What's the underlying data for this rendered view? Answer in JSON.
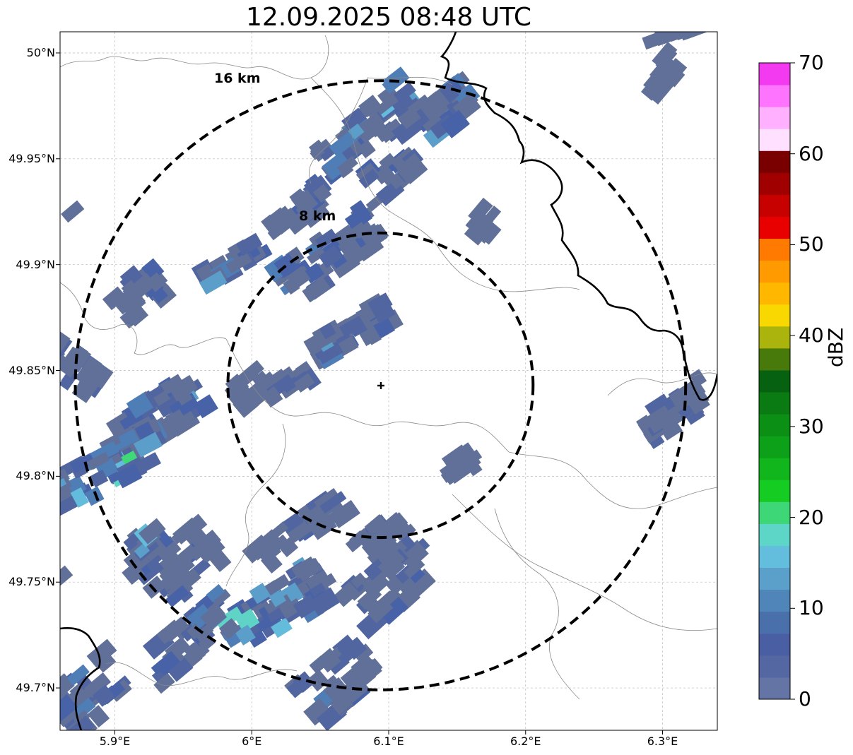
{
  "title": "12.09.2025 08:48 UTC",
  "map": {
    "lon_range": [
      5.86,
      6.34
    ],
    "lat_range": [
      49.68,
      50.01
    ],
    "center": {
      "lon": 6.094,
      "lat": 49.843
    },
    "x_ticks": [
      {
        "value": 5.9,
        "label": "5.9°E"
      },
      {
        "value": 6.0,
        "label": "6°E"
      },
      {
        "value": 6.1,
        "label": "6.1°E"
      },
      {
        "value": 6.2,
        "label": "6.2°E"
      },
      {
        "value": 6.3,
        "label": "6.3°E"
      }
    ],
    "y_ticks": [
      {
        "value": 50.0,
        "label": "50°N"
      },
      {
        "value": 49.95,
        "label": "49.95°N"
      },
      {
        "value": 49.9,
        "label": "49.9°N"
      },
      {
        "value": 49.85,
        "label": "49.85°N"
      },
      {
        "value": 49.8,
        "label": "49.8°N"
      },
      {
        "value": 49.75,
        "label": "49.75°N"
      },
      {
        "value": 49.7,
        "label": "49.7°N"
      }
    ],
    "rings": [
      {
        "radius_km": 8,
        "label": "8 km"
      },
      {
        "radius_km": 16,
        "label": "16 km"
      }
    ],
    "echo_colors": [
      "#607099",
      "#5166a0",
      "#4862a8",
      "#4f7db5",
      "#5b9ec9",
      "#63bcdb",
      "#5fd4c6",
      "#3fd977",
      "#14c825",
      "#10a81a"
    ]
  },
  "colorbar": {
    "label": "dBZ",
    "ticks": [
      "0",
      "10",
      "20",
      "30",
      "40",
      "50",
      "60",
      "70"
    ],
    "colors": [
      "#6475a5",
      "#5467a2",
      "#4a5fa3",
      "#4a70ac",
      "#4f85b8",
      "#5aa0ca",
      "#63bedd",
      "#5dd6c8",
      "#3ed777",
      "#15cc22",
      "#11b61c",
      "#0da11a",
      "#0c8f15",
      "#0a7b12",
      "#066210",
      "#477a0a",
      "#abb40d",
      "#f9d700",
      "#ffb700",
      "#ff9a00",
      "#ff7a00",
      "#e80000",
      "#c70000",
      "#a10000",
      "#7a0000",
      "#ffe1ff",
      "#ffb0ff",
      "#ff74ff",
      "#f33af0"
    ]
  }
}
